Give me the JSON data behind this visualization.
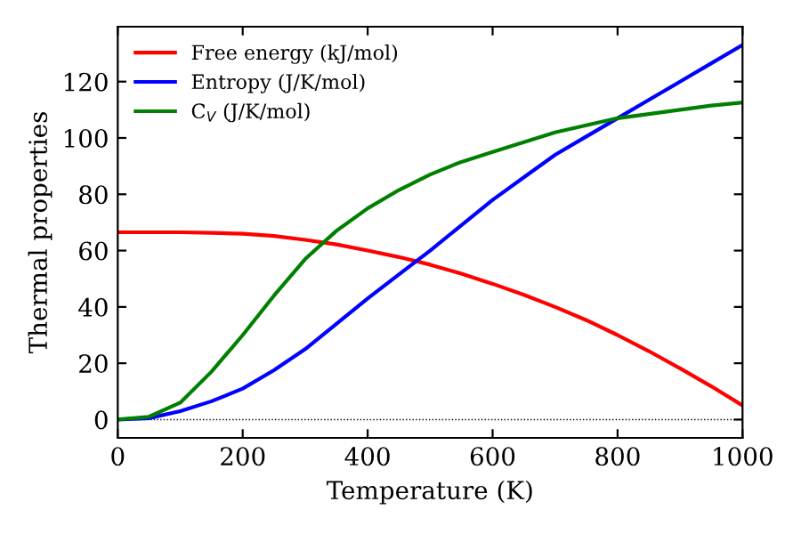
{
  "chart_data": {
    "type": "line",
    "xlabel": "Temperature (K)",
    "ylabel": "Thermal properties",
    "xlim": [
      0,
      1000
    ],
    "ylim": [
      -6.5,
      139.5
    ],
    "xticks": [
      0,
      200,
      400,
      600,
      800,
      1000
    ],
    "yticks": [
      0,
      20,
      40,
      60,
      80,
      100,
      120
    ],
    "legend": "top left",
    "grid": false,
    "marker": "none",
    "line_style": "solid",
    "ref_lines": [
      {
        "axis": "y",
        "value": 0,
        "color": "#000000",
        "line_style": "dotted"
      }
    ],
    "series": [
      {
        "name": "Free energy (kJ/mol)",
        "color": "#ff0000",
        "x": [
          0,
          50,
          100,
          150,
          200,
          250,
          300,
          350,
          400,
          450,
          500,
          550,
          600,
          650,
          700,
          750,
          800,
          850,
          900,
          950,
          1000
        ],
        "values": [
          66.5,
          66.5,
          66.5,
          66.3,
          66,
          65.2,
          63.8,
          62.2,
          60,
          57.7,
          55,
          51.8,
          48.2,
          44.3,
          40,
          35.3,
          30,
          24.3,
          18.2,
          11.8,
          5
        ]
      },
      {
        "name": "Entropy (J/K/mol)",
        "color": "#0000ff",
        "x": [
          0,
          50,
          100,
          150,
          200,
          250,
          300,
          350,
          400,
          450,
          500,
          550,
          600,
          650,
          700,
          750,
          800,
          850,
          900,
          950,
          1000
        ],
        "values": [
          0,
          0.5,
          3,
          6.5,
          11,
          17.5,
          25,
          34,
          43,
          51.5,
          60,
          69,
          78,
          86,
          94,
          100.5,
          107,
          113.5,
          120,
          126.5,
          133
        ]
      },
      {
        "name": "C$_{V}$ (J/K/mol)",
        "color": "#008000",
        "x": [
          0,
          50,
          100,
          150,
          200,
          250,
          300,
          350,
          400,
          450,
          500,
          550,
          600,
          650,
          700,
          750,
          800,
          850,
          900,
          950,
          1000
        ],
        "values": [
          0,
          1,
          6,
          17,
          30,
          44,
          57,
          67,
          75,
          81.5,
          87,
          91.5,
          95,
          98.5,
          102,
          104.5,
          107,
          108.5,
          110,
          111.5,
          112.6
        ]
      }
    ]
  }
}
